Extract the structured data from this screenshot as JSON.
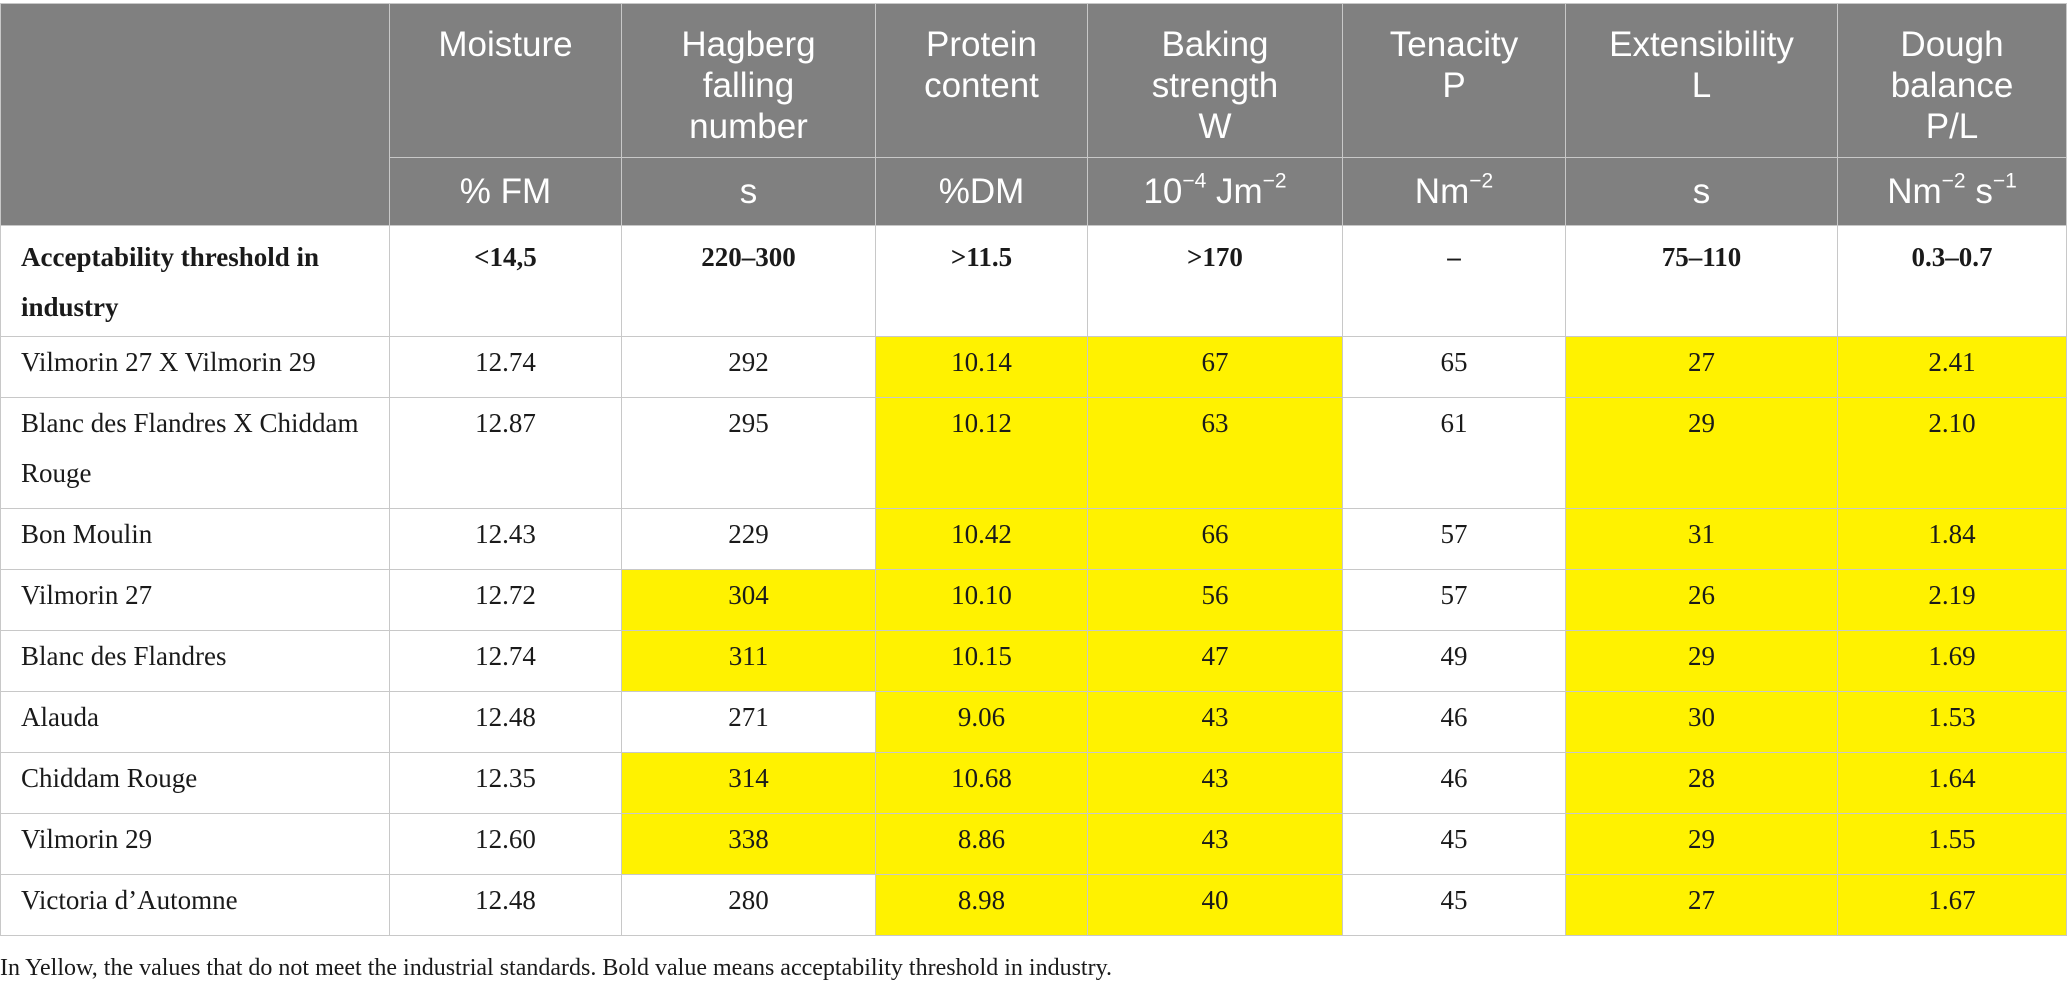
{
  "table": {
    "columns": [
      {
        "name": "Moisture",
        "unit": "% FM"
      },
      {
        "name": "Hagberg\nfalling\nnumber",
        "unit": "s"
      },
      {
        "name": "Protein\ncontent",
        "unit": "%DM"
      },
      {
        "name": "Baking\nstrength\nW",
        "unit": "10⁻⁴ Jm⁻²"
      },
      {
        "name": "Tenacity\nP",
        "unit": "Nm⁻²"
      },
      {
        "name": "Extensibility\nL",
        "unit": "s"
      },
      {
        "name": "Dough\nbalance\nP/L",
        "unit": "Nm⁻² s⁻¹"
      }
    ],
    "threshold": {
      "label": "Acceptability threshold in industry",
      "values": [
        "<14,5",
        "220–300",
        ">11.5",
        ">170",
        "–",
        "75–110",
        "0.3–0.7"
      ]
    },
    "rows": [
      {
        "label": "Vilmorin 27 X Vilmorin 29",
        "values": [
          "12.74",
          "292",
          "10.14",
          "67",
          "65",
          "27",
          "2.41"
        ],
        "flags": [
          false,
          false,
          true,
          true,
          false,
          true,
          true
        ]
      },
      {
        "label": "Blanc des Flandres X Chiddam Rouge",
        "values": [
          "12.87",
          "295",
          "10.12",
          "63",
          "61",
          "29",
          "2.10"
        ],
        "flags": [
          false,
          false,
          true,
          true,
          false,
          true,
          true
        ]
      },
      {
        "label": "Bon Moulin",
        "values": [
          "12.43",
          "229",
          "10.42",
          "66",
          "57",
          "31",
          "1.84"
        ],
        "flags": [
          false,
          false,
          true,
          true,
          false,
          true,
          true
        ]
      },
      {
        "label": "Vilmorin 27",
        "values": [
          "12.72",
          "304",
          "10.10",
          "56",
          "57",
          "26",
          "2.19"
        ],
        "flags": [
          false,
          true,
          true,
          true,
          false,
          true,
          true
        ]
      },
      {
        "label": "Blanc des Flandres",
        "values": [
          "12.74",
          "311",
          "10.15",
          "47",
          "49",
          "29",
          "1.69"
        ],
        "flags": [
          false,
          true,
          true,
          true,
          false,
          true,
          true
        ]
      },
      {
        "label": "Alauda",
        "values": [
          "12.48",
          "271",
          "9.06",
          "43",
          "46",
          "30",
          "1.53"
        ],
        "flags": [
          false,
          false,
          true,
          true,
          false,
          true,
          true
        ]
      },
      {
        "label": "Chiddam Rouge",
        "values": [
          "12.35",
          "314",
          "10.68",
          "43",
          "46",
          "28",
          "1.64"
        ],
        "flags": [
          false,
          true,
          true,
          true,
          false,
          true,
          true
        ]
      },
      {
        "label": "Vilmorin 29",
        "values": [
          "12.60",
          "338",
          "8.86",
          "43",
          "45",
          "29",
          "1.55"
        ],
        "flags": [
          false,
          true,
          true,
          true,
          false,
          true,
          true
        ]
      },
      {
        "label": "Victoria d’Automne",
        "values": [
          "12.48",
          "280",
          "8.98",
          "40",
          "45",
          "27",
          "1.67"
        ],
        "flags": [
          false,
          false,
          true,
          true,
          false,
          true,
          true
        ]
      }
    ],
    "highlight_color": "#fff200",
    "header_color": "#808080"
  },
  "footnote": "In Yellow, the values that do not meet the industrial standards. Bold value means acceptability threshold in industry."
}
